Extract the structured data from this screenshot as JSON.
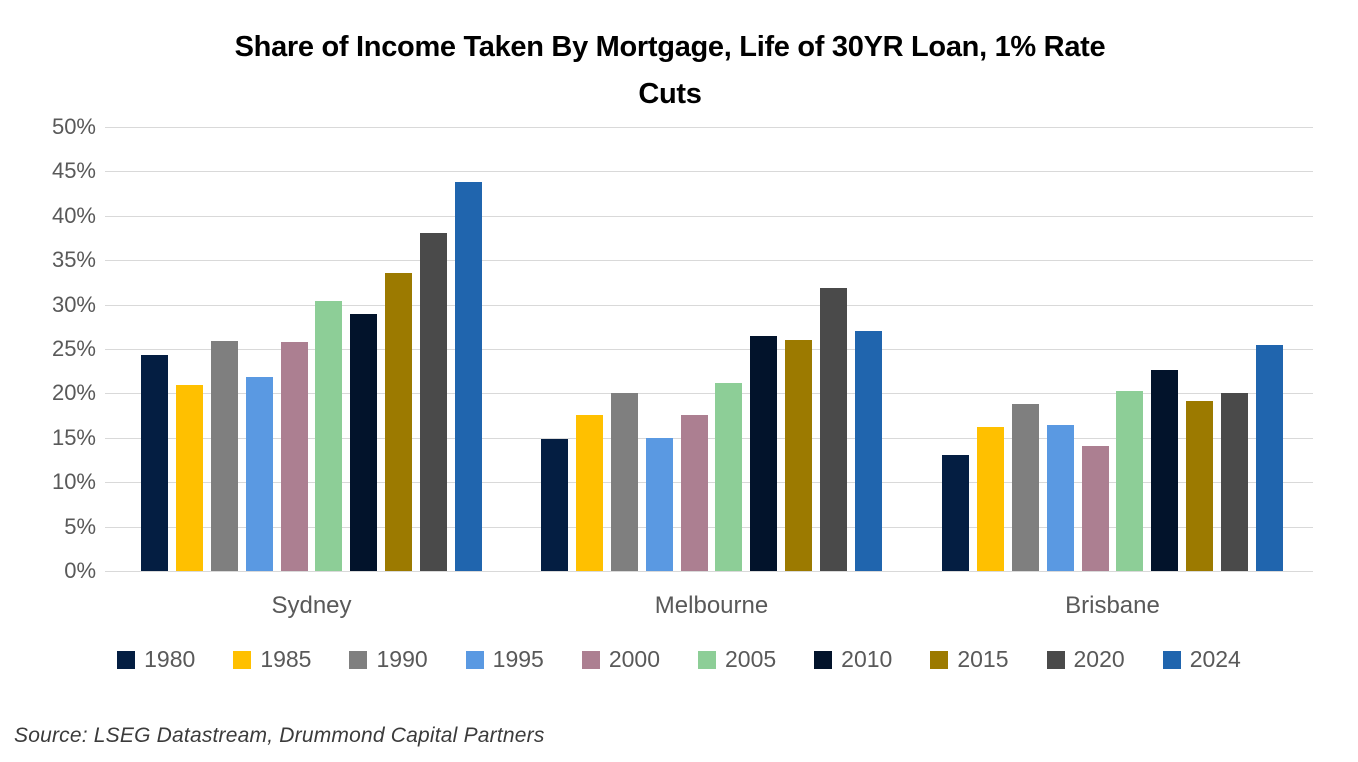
{
  "chart_data": {
    "type": "bar",
    "title": "Share of Income Taken By Mortgage, Life of 30YR Loan, 1% Rate Cuts",
    "title_lines": {
      "line1": "Share of Income Taken By Mortgage, Life of 30YR Loan, 1% Rate",
      "line2": "Cuts"
    },
    "categories": [
      "Sydney",
      "Melbourne",
      "Brisbane"
    ],
    "series": [
      {
        "name": "1980",
        "color": "#041E42",
        "values": [
          24.3,
          14.9,
          13.1
        ]
      },
      {
        "name": "1985",
        "color": "#FFC000",
        "values": [
          21.0,
          17.6,
          16.2
        ]
      },
      {
        "name": "1990",
        "color": "#7F7F7F",
        "values": [
          25.9,
          20.0,
          18.8
        ]
      },
      {
        "name": "1995",
        "color": "#5A99E2",
        "values": [
          21.8,
          15.0,
          16.5
        ]
      },
      {
        "name": "2000",
        "color": "#AC7F91",
        "values": [
          25.8,
          17.6,
          14.1
        ]
      },
      {
        "name": "2005",
        "color": "#8DCE97",
        "values": [
          30.4,
          21.2,
          20.3
        ]
      },
      {
        "name": "2010",
        "color": "#02132B",
        "values": [
          29.0,
          26.5,
          22.6
        ]
      },
      {
        "name": "2015",
        "color": "#9C7A00",
        "values": [
          33.6,
          26.0,
          19.2
        ]
      },
      {
        "name": "2020",
        "color": "#4A4A4A",
        "values": [
          38.1,
          31.9,
          20.1
        ]
      },
      {
        "name": "2024",
        "color": "#2065AE",
        "values": [
          43.8,
          27.0,
          25.4
        ]
      }
    ],
    "ylim": [
      0,
      50
    ],
    "ytick_step": 5,
    "ytick_suffix": "%",
    "ytick_labels": [
      "0%",
      "5%",
      "10%",
      "15%",
      "20%",
      "25%",
      "30%",
      "35%",
      "40%",
      "45%",
      "50%"
    ],
    "grid": true,
    "legend_position": "bottom",
    "colors": {
      "gridline": "#D9D9D9",
      "axis_text": "#595959",
      "title_text": "#000000"
    }
  },
  "footer": {
    "source": "Source: LSEG Datastream, Drummond Capital Partners"
  }
}
